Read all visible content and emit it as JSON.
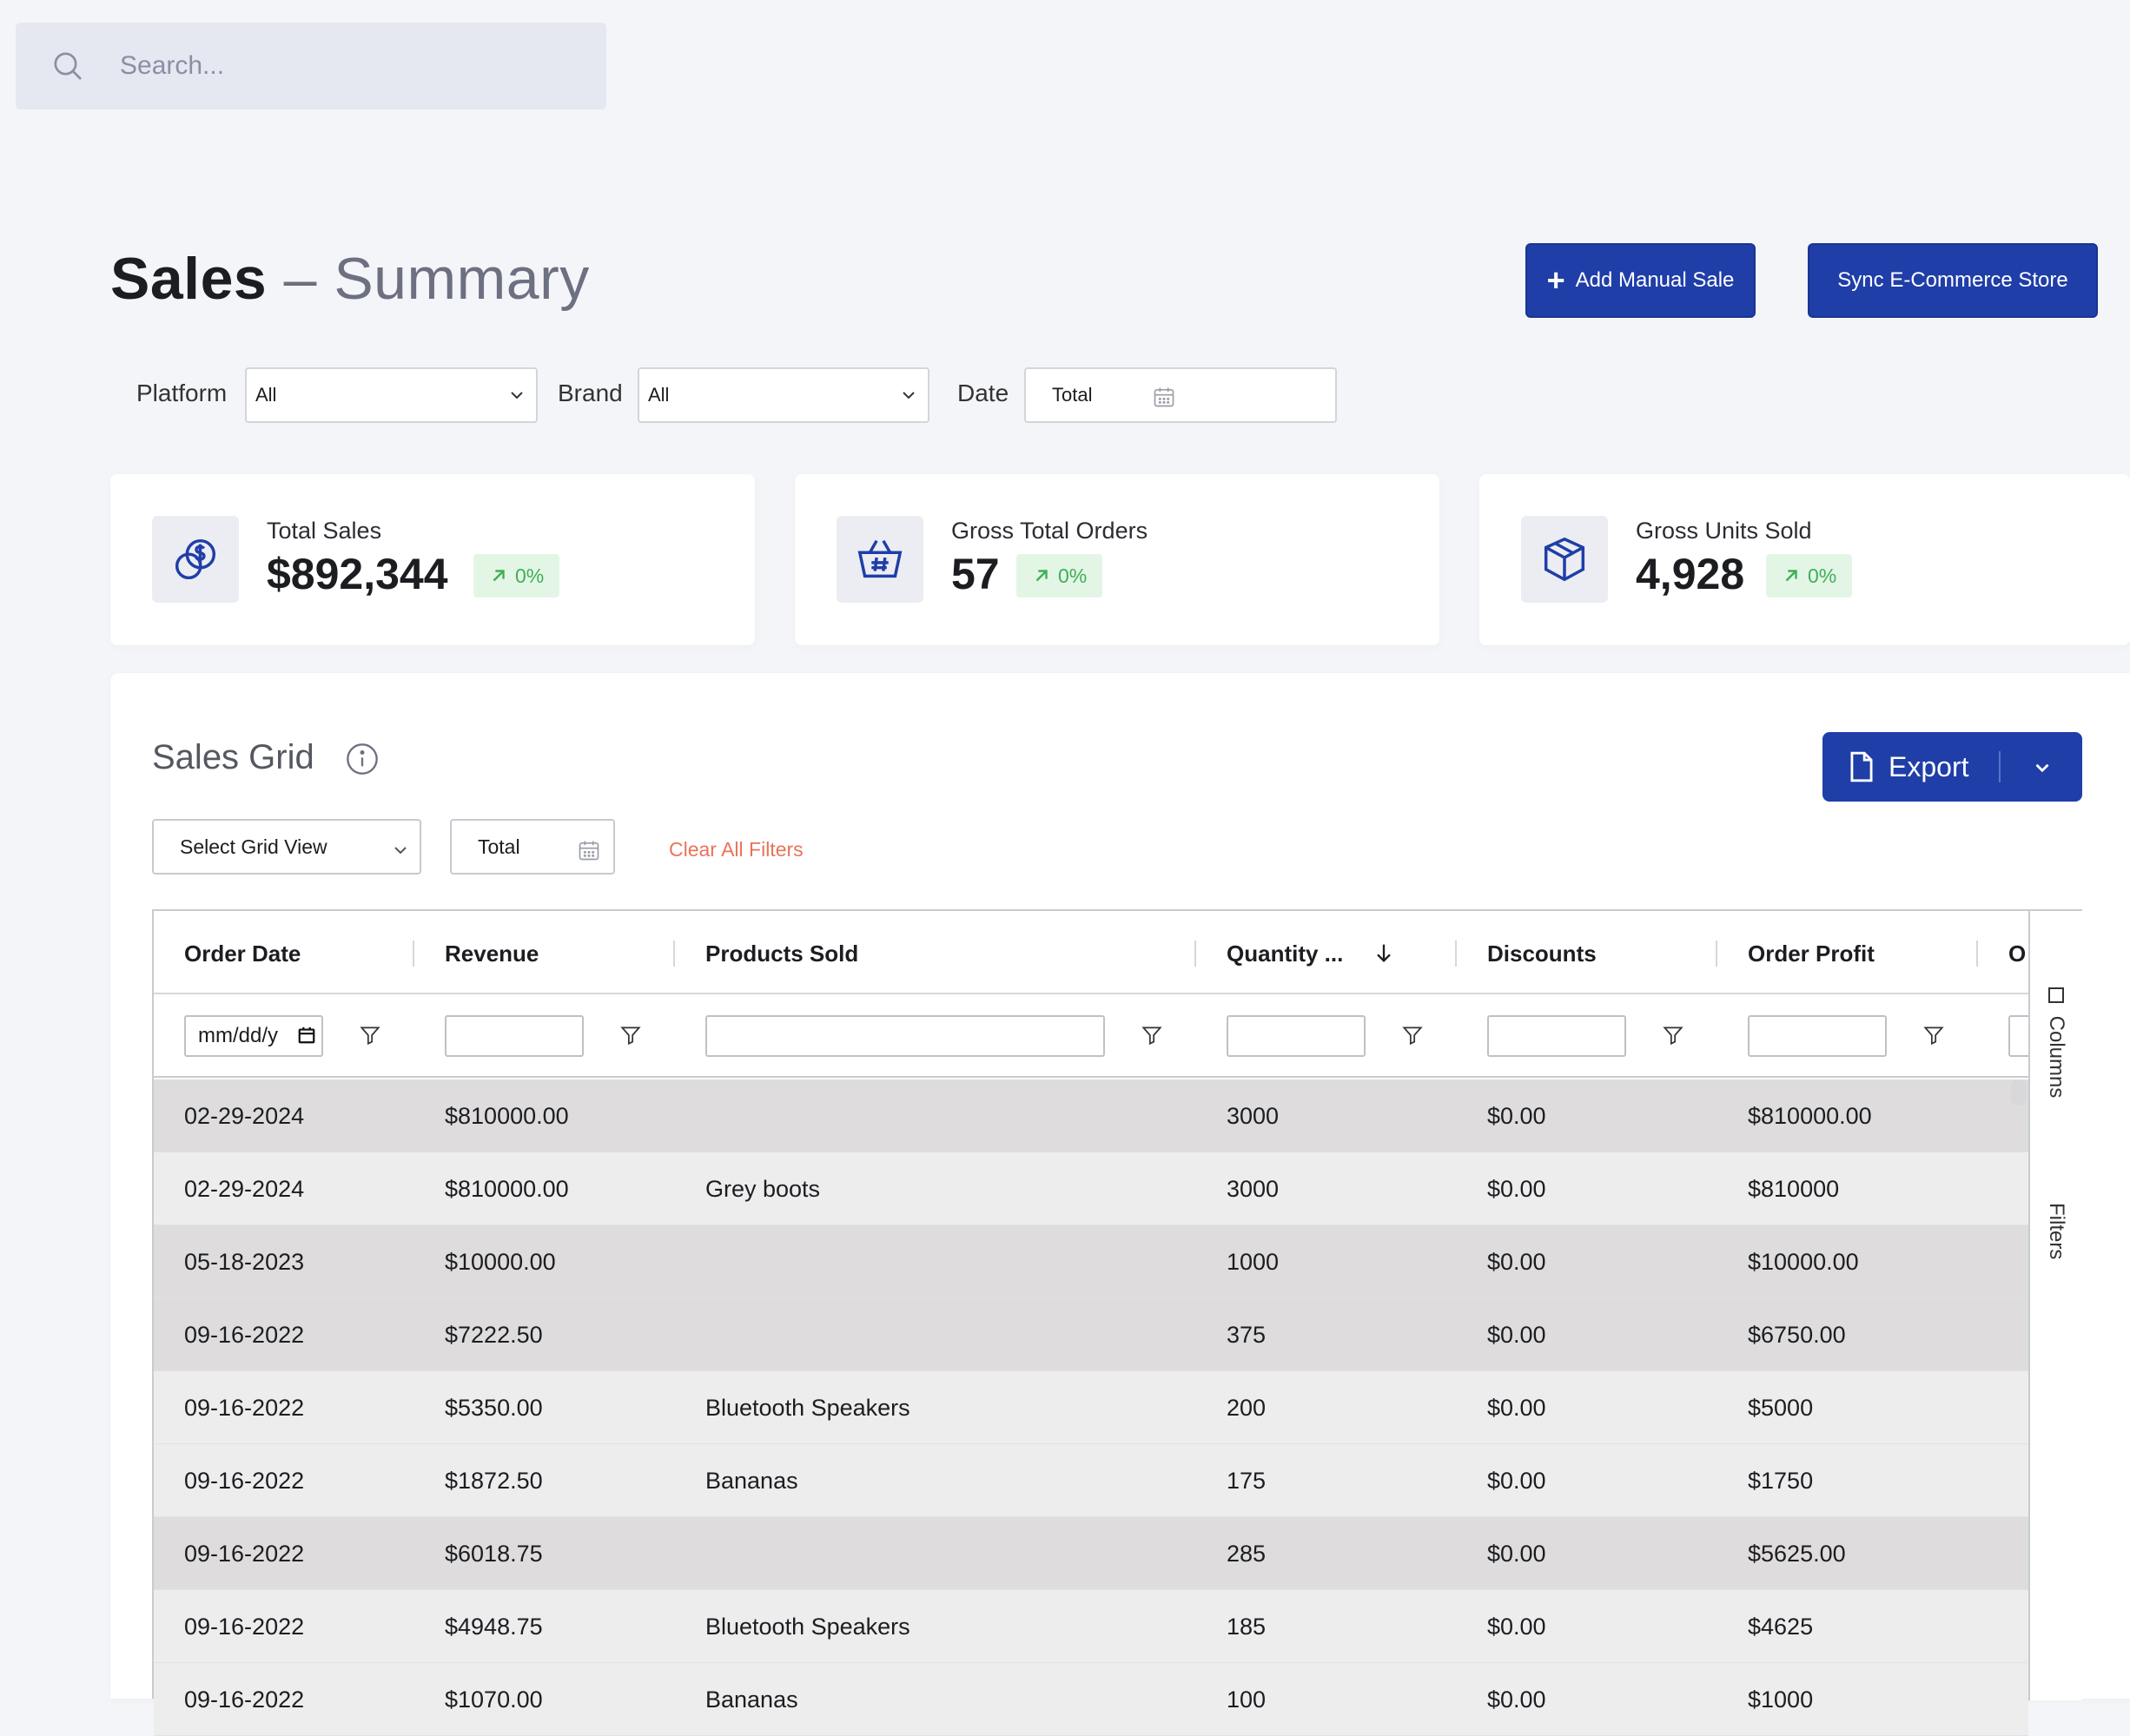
{
  "search": {
    "placeholder": "Search..."
  },
  "header": {
    "title": "Sales",
    "dash": " – ",
    "subtitle": "Summary",
    "add_button": "Add Manual Sale",
    "sync_button": "Sync E-Commerce Store"
  },
  "filters": {
    "platform_label": "Platform",
    "platform_value": "All",
    "brand_label": "Brand",
    "brand_value": "All",
    "date_label": "Date",
    "date_value": "Total"
  },
  "cards": [
    {
      "label": "Total Sales",
      "value": "$892,344",
      "change": "0%",
      "icon": "coins-dollar-icon"
    },
    {
      "label": "Gross Total Orders",
      "value": "57",
      "change": "0%",
      "icon": "basket-hash-icon"
    },
    {
      "label": "Gross Units Sold",
      "value": "4,928",
      "change": "0%",
      "icon": "box-icon"
    }
  ],
  "grid": {
    "title": "Sales Grid",
    "export_label": "Export",
    "grid_view_select": "Select Grid View",
    "date_select": "Total",
    "clear_filters": "Clear All Filters",
    "date_filter_placeholder": "mm/dd/y",
    "columns": [
      "Order Date",
      "Revenue",
      "Products Sold",
      "Quantity ...",
      "Discounts",
      "Order Profit",
      "O"
    ],
    "side_tabs": [
      "Columns",
      "Filters"
    ],
    "rows": [
      {
        "date": "02-29-2024",
        "revenue": "$810000.00",
        "product": "",
        "qty": "3000",
        "discounts": "$0.00",
        "profit": "$810000.00"
      },
      {
        "date": "02-29-2024",
        "revenue": "$810000.00",
        "product": "Grey boots",
        "qty": "3000",
        "discounts": "$0.00",
        "profit": "$810000"
      },
      {
        "date": "05-18-2023",
        "revenue": "$10000.00",
        "product": "",
        "qty": "1000",
        "discounts": "$0.00",
        "profit": "$10000.00"
      },
      {
        "date": "09-16-2022",
        "revenue": "$7222.50",
        "product": "",
        "qty": "375",
        "discounts": "$0.00",
        "profit": "$6750.00"
      },
      {
        "date": "09-16-2022",
        "revenue": "$5350.00",
        "product": "Bluetooth Speakers",
        "qty": "200",
        "discounts": "$0.00",
        "profit": "$5000"
      },
      {
        "date": "09-16-2022",
        "revenue": "$1872.50",
        "product": "Bananas",
        "qty": "175",
        "discounts": "$0.00",
        "profit": "$1750"
      },
      {
        "date": "09-16-2022",
        "revenue": "$6018.75",
        "product": "",
        "qty": "285",
        "discounts": "$0.00",
        "profit": "$5625.00"
      },
      {
        "date": "09-16-2022",
        "revenue": "$4948.75",
        "product": "Bluetooth Speakers",
        "qty": "185",
        "discounts": "$0.00",
        "profit": "$4625"
      },
      {
        "date": "09-16-2022",
        "revenue": "$1070.00",
        "product": "Bananas",
        "qty": "100",
        "discounts": "$0.00",
        "profit": "$1000"
      }
    ]
  },
  "colors": {
    "primary": "#1f3ea8",
    "background": "#f4f5f9",
    "badge_green": "#3fae55",
    "clear_link": "#e9735b"
  }
}
